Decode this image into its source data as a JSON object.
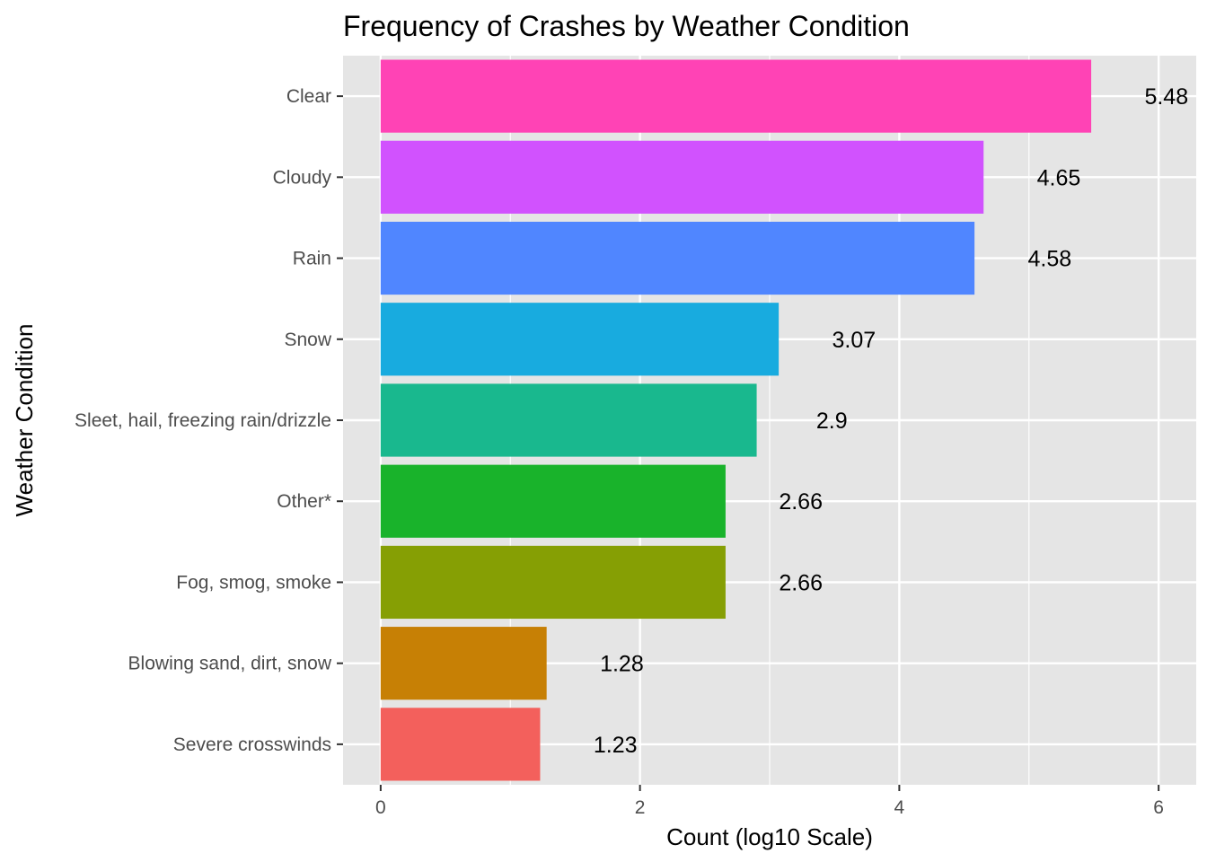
{
  "chart_data": {
    "type": "bar",
    "orientation": "horizontal",
    "title": "Frequency of Crashes by Weather Condition",
    "xlabel": "Count (log10 Scale)",
    "ylabel": "Weather Condition",
    "xlim": [
      -0.29,
      6.29
    ],
    "x_ticks": [
      0,
      2,
      4,
      6
    ],
    "grid": true,
    "legend": "none",
    "panel_background": "#e5e5e5",
    "grid_color": "#ffffff",
    "categories": [
      "Clear",
      "Cloudy",
      "Rain",
      "Snow",
      "Sleet, hail, freezing rain/drizzle",
      "Other*",
      "Fog, smog, smoke",
      "Blowing sand, dirt, snow",
      "Severe crosswinds"
    ],
    "values": [
      5.48,
      4.65,
      4.58,
      3.07,
      2.9,
      2.66,
      2.66,
      1.28,
      1.23
    ],
    "labels": [
      "5.48",
      "4.65",
      "4.58",
      "3.07",
      "2.9",
      "2.66",
      "2.66",
      "1.28",
      "1.23"
    ],
    "colors": [
      "#ff43b5",
      "#d152fe",
      "#5086ff",
      "#18abdf",
      "#19b88e",
      "#19b32b",
      "#869f04",
      "#c78005",
      "#f3605c"
    ]
  }
}
